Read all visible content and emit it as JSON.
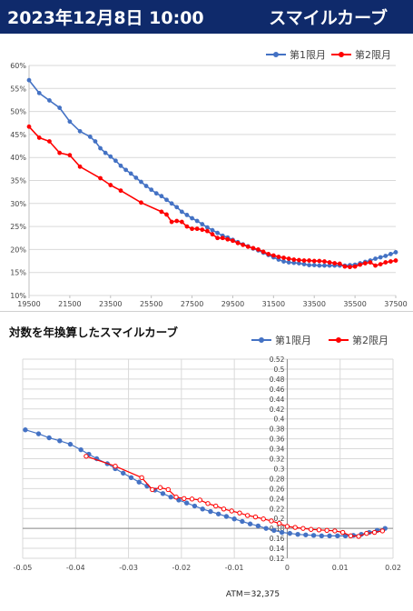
{
  "header": {
    "title": "2023年12月8日 10:00",
    "subtitle": "スマイルカーブ"
  },
  "chart_data": [
    {
      "type": "line",
      "title": "",
      "xlabel": "",
      "ylabel": "",
      "x_ticks": [
        "19500",
        "21500",
        "23500",
        "25500",
        "27500",
        "29500",
        "31500",
        "33500",
        "35500",
        "37500"
      ],
      "y_ticks": [
        "10%",
        "15%",
        "20%",
        "25%",
        "30%",
        "35%",
        "40%",
        "45%",
        "50%",
        "55%",
        "60%"
      ],
      "xlim": [
        19500,
        37500
      ],
      "ylim": [
        0.1,
        0.6
      ],
      "legend_position": "top-right",
      "grid": true,
      "series": [
        {
          "name": "第1限月",
          "color": "#4472c4",
          "x": [
            19500,
            20000,
            20500,
            21000,
            21500,
            22000,
            22500,
            22750,
            23000,
            23250,
            23500,
            23750,
            24000,
            24250,
            24500,
            24750,
            25000,
            25250,
            25500,
            25750,
            26000,
            26250,
            26500,
            26750,
            27000,
            27250,
            27500,
            27750,
            28000,
            28250,
            28500,
            28750,
            29000,
            29250,
            29500,
            29750,
            30000,
            30250,
            30500,
            30750,
            31000,
            31250,
            31500,
            31750,
            32000,
            32250,
            32500,
            32750,
            33000,
            33250,
            33500,
            33750,
            34000,
            34250,
            34500,
            34750,
            35000,
            35250,
            35500,
            35750,
            36000,
            36250,
            36500,
            36750,
            37000,
            37250,
            37500
          ],
          "y": [
            0.568,
            0.54,
            0.524,
            0.508,
            0.478,
            0.457,
            0.445,
            0.435,
            0.42,
            0.41,
            0.402,
            0.393,
            0.382,
            0.373,
            0.365,
            0.356,
            0.347,
            0.338,
            0.33,
            0.322,
            0.316,
            0.308,
            0.3,
            0.292,
            0.282,
            0.275,
            0.268,
            0.262,
            0.255,
            0.248,
            0.242,
            0.236,
            0.23,
            0.226,
            0.221,
            0.216,
            0.211,
            0.207,
            0.202,
            0.198,
            0.193,
            0.188,
            0.183,
            0.178,
            0.174,
            0.172,
            0.171,
            0.17,
            0.168,
            0.166,
            0.166,
            0.165,
            0.165,
            0.165,
            0.165,
            0.165,
            0.165,
            0.166,
            0.167,
            0.17,
            0.173,
            0.176,
            0.18,
            0.183,
            0.186,
            0.19,
            0.194
          ]
        },
        {
          "name": "第2限月",
          "color": "#ff0000",
          "x": [
            19500,
            20000,
            20500,
            21000,
            21500,
            22000,
            23000,
            23500,
            24000,
            25000,
            26000,
            26250,
            26500,
            26750,
            27000,
            27250,
            27500,
            27750,
            28000,
            28250,
            28500,
            28750,
            29000,
            29250,
            29500,
            29750,
            30000,
            30250,
            30500,
            30750,
            31000,
            31250,
            31500,
            31750,
            32000,
            32250,
            32500,
            32750,
            33000,
            33250,
            33500,
            33750,
            34000,
            34250,
            34500,
            34750,
            35000,
            35250,
            35500,
            35750,
            36000,
            36250,
            36500,
            36750,
            37000,
            37250,
            37500
          ],
          "y": [
            0.467,
            0.443,
            0.435,
            0.41,
            0.405,
            0.38,
            0.355,
            0.34,
            0.328,
            0.302,
            0.282,
            0.276,
            0.26,
            0.262,
            0.26,
            0.25,
            0.245,
            0.245,
            0.243,
            0.24,
            0.233,
            0.225,
            0.225,
            0.222,
            0.219,
            0.214,
            0.21,
            0.206,
            0.203,
            0.2,
            0.195,
            0.19,
            0.187,
            0.184,
            0.182,
            0.18,
            0.178,
            0.177,
            0.176,
            0.176,
            0.175,
            0.175,
            0.174,
            0.172,
            0.17,
            0.169,
            0.163,
            0.162,
            0.163,
            0.167,
            0.17,
            0.172,
            0.165,
            0.168,
            0.172,
            0.174,
            0.176
          ]
        }
      ]
    },
    {
      "type": "scatter",
      "title": "対数を年換算したスマイルカーブ",
      "xlabel": "ATM＝32,375",
      "ylabel": "",
      "x_ticks": [
        "-0.05",
        "-0.04",
        "-0.03",
        "-0.02",
        "-0.01",
        "0",
        "0.01",
        "0.02"
      ],
      "y_ticks": [
        "0.12",
        "0.14",
        "0.16",
        "0.18",
        "0.2",
        "0.22",
        "0.24",
        "0.26",
        "0.28",
        "0.3",
        "0.32",
        "0.34",
        "0.36",
        "0.38",
        "0.4",
        "0.42",
        "0.44",
        "0.46",
        "0.48",
        "0.5",
        "0.52"
      ],
      "xlim": [
        -0.05,
        0.02
      ],
      "ylim": [
        0.12,
        0.52
      ],
      "legend_position": "top-right",
      "grid": true,
      "series": [
        {
          "name": "第1限月",
          "color": "#4472c4",
          "x": [
            -0.0495,
            -0.047,
            -0.045,
            -0.043,
            -0.041,
            -0.039,
            -0.0375,
            -0.036,
            -0.034,
            -0.0325,
            -0.031,
            -0.0295,
            -0.028,
            -0.0265,
            -0.025,
            -0.0235,
            -0.022,
            -0.0205,
            -0.019,
            -0.0175,
            -0.016,
            -0.0145,
            -0.013,
            -0.0115,
            -0.01,
            -0.0085,
            -0.007,
            -0.0055,
            -0.004,
            -0.0025,
            -0.001,
            0.0005,
            0.002,
            0.0035,
            0.005,
            0.0065,
            0.008,
            0.0095,
            0.011,
            0.0125,
            0.014,
            0.0155,
            0.017,
            0.0185
          ],
          "y": [
            0.378,
            0.37,
            0.362,
            0.356,
            0.349,
            0.338,
            0.329,
            0.32,
            0.31,
            0.3,
            0.291,
            0.282,
            0.273,
            0.265,
            0.257,
            0.25,
            0.243,
            0.237,
            0.231,
            0.225,
            0.219,
            0.214,
            0.209,
            0.204,
            0.199,
            0.194,
            0.189,
            0.185,
            0.18,
            0.176,
            0.172,
            0.17,
            0.168,
            0.167,
            0.166,
            0.165,
            0.165,
            0.165,
            0.165,
            0.166,
            0.168,
            0.172,
            0.176,
            0.18
          ]
        },
        {
          "name": "第2限月",
          "color": "#ff0000",
          "x": [
            -0.038,
            -0.0325,
            -0.0275,
            -0.0255,
            -0.024,
            -0.0225,
            -0.021,
            -0.0195,
            -0.018,
            -0.0165,
            -0.015,
            -0.0135,
            -0.012,
            -0.0105,
            -0.009,
            -0.0075,
            -0.006,
            -0.0045,
            -0.003,
            -0.0015,
            0.0,
            0.0015,
            0.003,
            0.0045,
            0.006,
            0.0075,
            0.009,
            0.0105,
            0.012,
            0.0135,
            0.015,
            0.0165,
            0.018
          ],
          "y": [
            0.325,
            0.305,
            0.282,
            0.258,
            0.262,
            0.258,
            0.243,
            0.24,
            0.239,
            0.237,
            0.23,
            0.225,
            0.219,
            0.215,
            0.211,
            0.206,
            0.203,
            0.199,
            0.195,
            0.19,
            0.184,
            0.182,
            0.18,
            0.178,
            0.177,
            0.176,
            0.175,
            0.172,
            0.165,
            0.164,
            0.17,
            0.172,
            0.175
          ]
        }
      ]
    }
  ]
}
